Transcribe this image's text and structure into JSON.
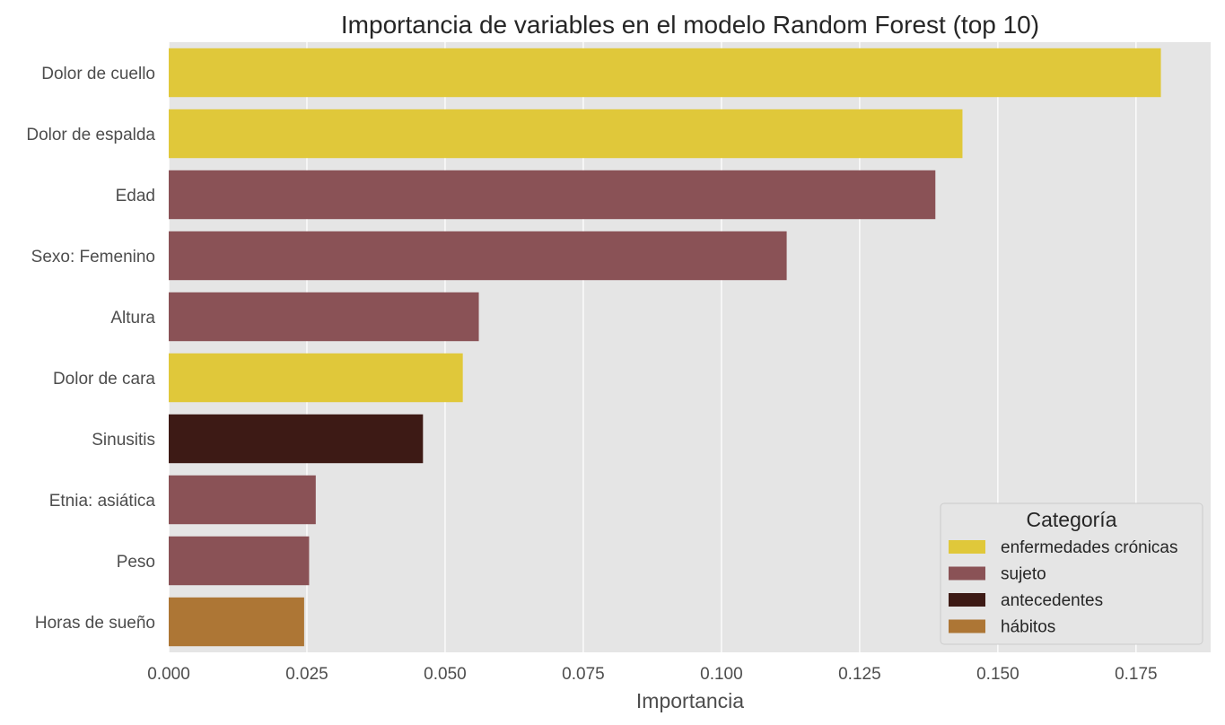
{
  "chart_data": {
    "type": "bar",
    "orientation": "horizontal",
    "title": "Importancia de variables en el modelo Random Forest (top 10)",
    "xlabel": "Importancia",
    "ylabel": "",
    "xlim": [
      0,
      0.1885
    ],
    "xticks": [
      0.0,
      0.025,
      0.05,
      0.075,
      0.1,
      0.125,
      0.15,
      0.175
    ],
    "xtick_labels": [
      "0.000",
      "0.025",
      "0.050",
      "0.075",
      "0.100",
      "0.125",
      "0.150",
      "0.175"
    ],
    "grid": true,
    "background": "#e5e5e5",
    "categories": [
      "Dolor de cuello",
      "Dolor de espalda",
      "Edad",
      "Sexo: Femenino",
      "Altura",
      "Dolor de cara",
      "Sinusitis",
      "Etnia: asiática",
      "Peso",
      "Horas de sueño"
    ],
    "values": [
      0.1795,
      0.1436,
      0.1387,
      0.1118,
      0.0561,
      0.0532,
      0.046,
      0.0266,
      0.0254,
      0.0245
    ],
    "bar_groups": [
      "enfermedades crónicas",
      "enfermedades crónicas",
      "sujeto",
      "sujeto",
      "sujeto",
      "enfermedades crónicas",
      "antecedentes",
      "sujeto",
      "sujeto",
      "hábitos"
    ],
    "legend": {
      "title": "Categoría",
      "position": "lower-right",
      "entries": [
        {
          "label": "enfermedades crónicas",
          "color": "#e0c83a"
        },
        {
          "label": "sujeto",
          "color": "#8a5256"
        },
        {
          "label": "antecedentes",
          "color": "#3d1a15"
        },
        {
          "label": "hábitos",
          "color": "#ad7635"
        }
      ]
    }
  }
}
